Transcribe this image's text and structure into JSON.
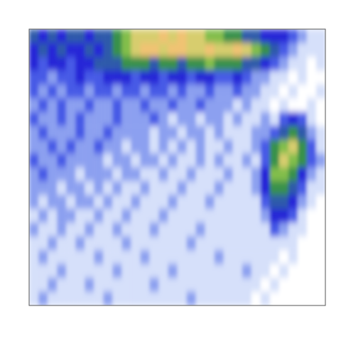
{
  "chart_data": {
    "type": "heatmap",
    "tick_labels": false,
    "color_range": [
      0,
      10
    ],
    "cells": [
      [
        5,
        4,
        5,
        4,
        5,
        5,
        4,
        5,
        5,
        6,
        7,
        8,
        8,
        8,
        9,
        8,
        9,
        8,
        8,
        7,
        7,
        6,
        6,
        5,
        5,
        4,
        4,
        4,
        3,
        2,
        1,
        1
      ],
      [
        4,
        5,
        4,
        5,
        4,
        4,
        5,
        4,
        5,
        6,
        7,
        8,
        9,
        9,
        8,
        9,
        9,
        8,
        8,
        9,
        8,
        8,
        9,
        8,
        7,
        6,
        5,
        3,
        2,
        1,
        1,
        1
      ],
      [
        4,
        3,
        4,
        4,
        3,
        4,
        4,
        5,
        5,
        5,
        6,
        6,
        6,
        5,
        6,
        6,
        5,
        6,
        6,
        7,
        6,
        6,
        6,
        5,
        5,
        4,
        3,
        2,
        1,
        1,
        0,
        1
      ],
      [
        3,
        3,
        2,
        3,
        3,
        4,
        3,
        3,
        4,
        4,
        4,
        3,
        4,
        4,
        3,
        4,
        4,
        3,
        4,
        4,
        3,
        3,
        4,
        3,
        2,
        2,
        1,
        1,
        0,
        1,
        0,
        0
      ],
      [
        3,
        2,
        3,
        2,
        3,
        3,
        2,
        3,
        3,
        2,
        3,
        3,
        2,
        3,
        3,
        2,
        3,
        2,
        2,
        3,
        2,
        2,
        3,
        2,
        2,
        1,
        1,
        0,
        1,
        0,
        0,
        1
      ],
      [
        2,
        3,
        2,
        3,
        2,
        2,
        3,
        2,
        2,
        3,
        2,
        2,
        3,
        2,
        2,
        3,
        2,
        2,
        3,
        2,
        2,
        2,
        1,
        2,
        1,
        1,
        0,
        1,
        0,
        0,
        1,
        0
      ],
      [
        3,
        2,
        2,
        3,
        2,
        3,
        2,
        2,
        2,
        3,
        2,
        2,
        2,
        3,
        2,
        1,
        2,
        2,
        1,
        2,
        2,
        1,
        2,
        1,
        1,
        2,
        1,
        3,
        4,
        3,
        1,
        0
      ],
      [
        2,
        3,
        2,
        2,
        2,
        3,
        2,
        2,
        3,
        2,
        2,
        2,
        2,
        1,
        2,
        2,
        1,
        2,
        2,
        1,
        2,
        1,
        1,
        1,
        2,
        2,
        3,
        5,
        6,
        5,
        2,
        1
      ],
      [
        2,
        2,
        3,
        2,
        3,
        2,
        2,
        3,
        2,
        2,
        1,
        2,
        2,
        1,
        2,
        1,
        2,
        1,
        2,
        1,
        1,
        2,
        1,
        1,
        2,
        3,
        6,
        7,
        8,
        6,
        3,
        1
      ],
      [
        3,
        2,
        2,
        3,
        2,
        2,
        2,
        2,
        1,
        2,
        2,
        1,
        2,
        2,
        1,
        2,
        1,
        1,
        2,
        1,
        2,
        1,
        1,
        2,
        1,
        3,
        6,
        8,
        7,
        6,
        3,
        2
      ],
      [
        2,
        3,
        2,
        2,
        2,
        1,
        2,
        2,
        2,
        1,
        2,
        2,
        1,
        1,
        2,
        1,
        1,
        2,
        1,
        1,
        1,
        2,
        1,
        1,
        2,
        4,
        7,
        7,
        6,
        4,
        2,
        1
      ],
      [
        2,
        2,
        2,
        1,
        2,
        2,
        1,
        2,
        1,
        2,
        1,
        1,
        2,
        1,
        1,
        1,
        2,
        1,
        1,
        1,
        2,
        1,
        1,
        1,
        2,
        4,
        6,
        6,
        5,
        3,
        1,
        1
      ],
      [
        2,
        1,
        2,
        2,
        1,
        2,
        2,
        1,
        2,
        1,
        1,
        2,
        1,
        1,
        1,
        2,
        1,
        1,
        1,
        2,
        1,
        1,
        1,
        1,
        1,
        3,
        5,
        5,
        4,
        2,
        1,
        0
      ],
      [
        1,
        2,
        1,
        2,
        2,
        1,
        1,
        2,
        1,
        1,
        2,
        1,
        1,
        1,
        2,
        1,
        1,
        1,
        1,
        1,
        1,
        1,
        1,
        1,
        1,
        2,
        4,
        4,
        3,
        1,
        0,
        0
      ],
      [
        2,
        1,
        1,
        2,
        1,
        1,
        2,
        1,
        1,
        2,
        1,
        1,
        1,
        2,
        1,
        1,
        1,
        1,
        2,
        1,
        1,
        1,
        1,
        1,
        1,
        1,
        3,
        2,
        1,
        1,
        0,
        0
      ],
      [
        1,
        1,
        2,
        1,
        1,
        2,
        1,
        1,
        1,
        1,
        2,
        1,
        1,
        1,
        1,
        1,
        1,
        2,
        1,
        1,
        1,
        1,
        1,
        1,
        1,
        1,
        1,
        1,
        1,
        0,
        0,
        0
      ],
      [
        1,
        2,
        1,
        1,
        1,
        1,
        1,
        2,
        1,
        1,
        1,
        1,
        2,
        1,
        1,
        1,
        1,
        1,
        1,
        1,
        2,
        1,
        1,
        1,
        1,
        1,
        1,
        0,
        1,
        0,
        0,
        0
      ],
      [
        1,
        1,
        1,
        2,
        1,
        1,
        1,
        1,
        1,
        2,
        1,
        1,
        1,
        1,
        1,
        2,
        1,
        1,
        1,
        1,
        1,
        1,
        1,
        2,
        1,
        1,
        0,
        1,
        0,
        0,
        0,
        0
      ],
      [
        1,
        1,
        2,
        1,
        1,
        1,
        2,
        1,
        1,
        1,
        1,
        1,
        1,
        2,
        1,
        1,
        1,
        1,
        1,
        1,
        1,
        1,
        1,
        1,
        1,
        0,
        1,
        0,
        0,
        0,
        0,
        0
      ],
      [
        1,
        2,
        1,
        1,
        1,
        1,
        1,
        1,
        2,
        1,
        1,
        1,
        1,
        1,
        1,
        1,
        1,
        2,
        1,
        1,
        1,
        1,
        1,
        1,
        0,
        1,
        0,
        0,
        0,
        0,
        0,
        0
      ]
    ]
  }
}
